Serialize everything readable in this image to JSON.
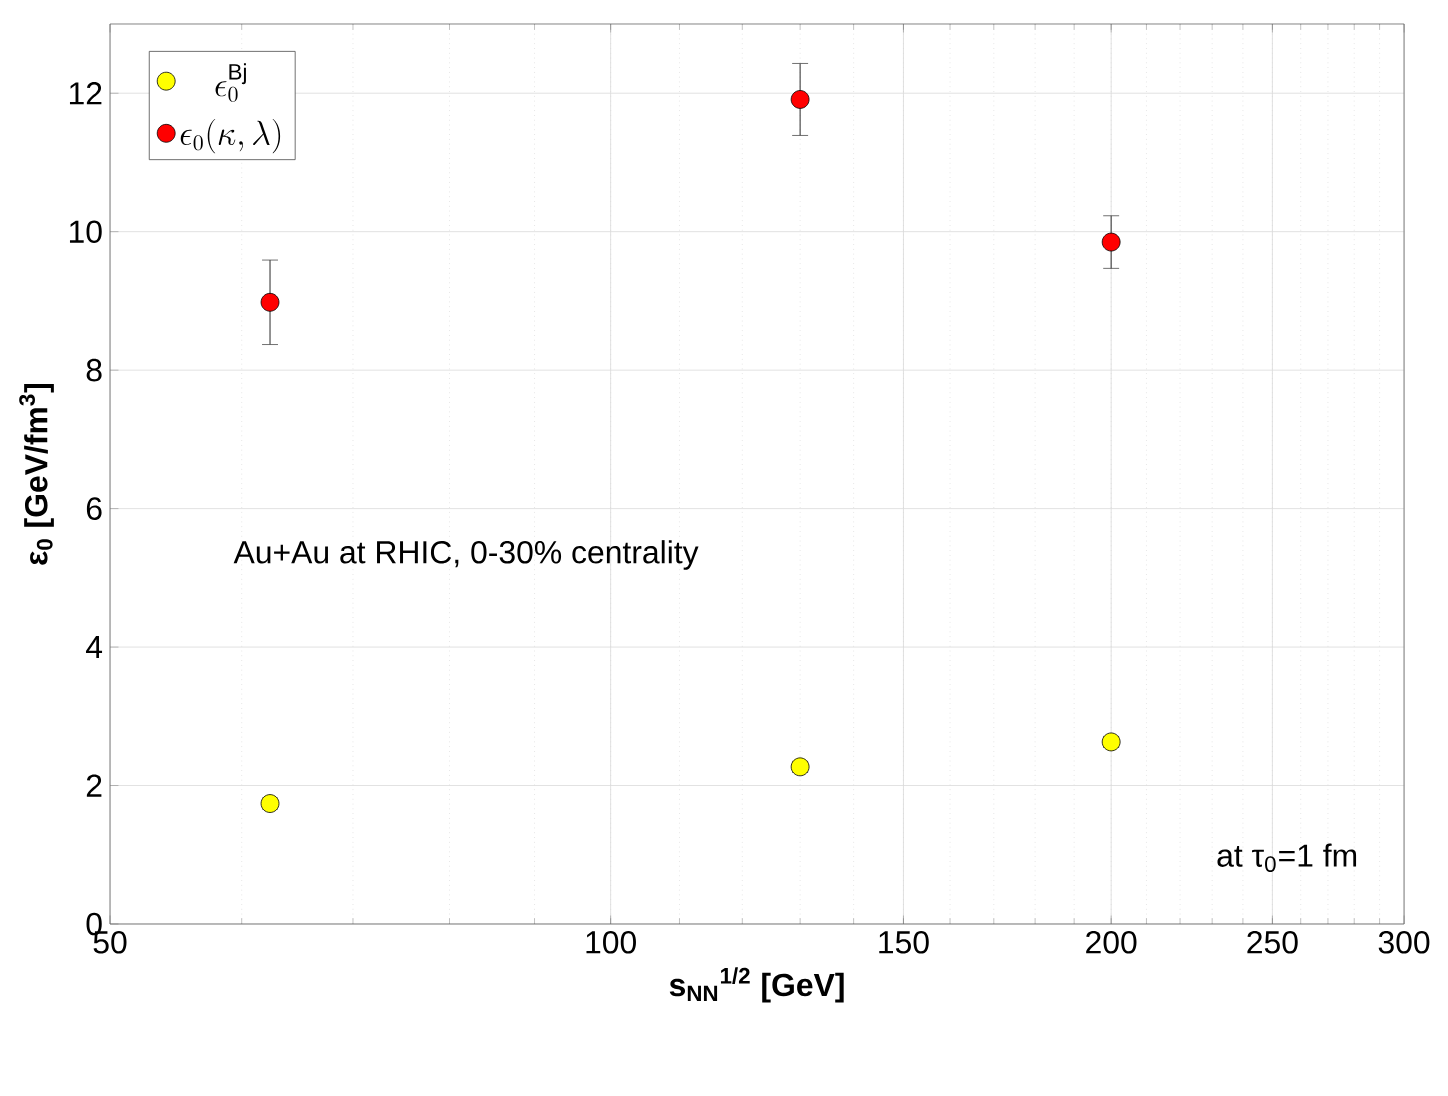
{
  "chart_data": {
    "type": "scatter",
    "xlabel": "s$_{NN}$$^{1/2}$ [GeV]",
    "ylabel": "ε$_{0}$ [GeV/fm$^{3}$]",
    "x": [
      62.4,
      130,
      200
    ],
    "series": [
      {
        "name": "\\epsilon_0^{\\mathrm{Bj}}",
        "color": "#ffff00",
        "values": [
          1.74,
          2.27,
          2.63
        ],
        "errors": [
          0.08,
          0.08,
          0.08
        ]
      },
      {
        "name": "\\epsilon_0(\\kappa,\\lambda)",
        "color": "#ff0000",
        "values": [
          8.98,
          11.91,
          9.85
        ],
        "errors": [
          0.61,
          0.52,
          0.38
        ]
      }
    ],
    "annotations": [
      "Au+Au at RHIC, 0-30% centrality",
      "at τ$_{0}$=1 fm"
    ],
    "log": "x",
    "xlim": [
      50,
      300
    ],
    "xticks": [
      50,
      100,
      150,
      200,
      250,
      300
    ],
    "ylim": [
      0,
      13
    ],
    "yticks": [
      0,
      2,
      4,
      6,
      8,
      10,
      12
    ],
    "grid": true,
    "legend": "top left",
    "marker": "circle"
  }
}
